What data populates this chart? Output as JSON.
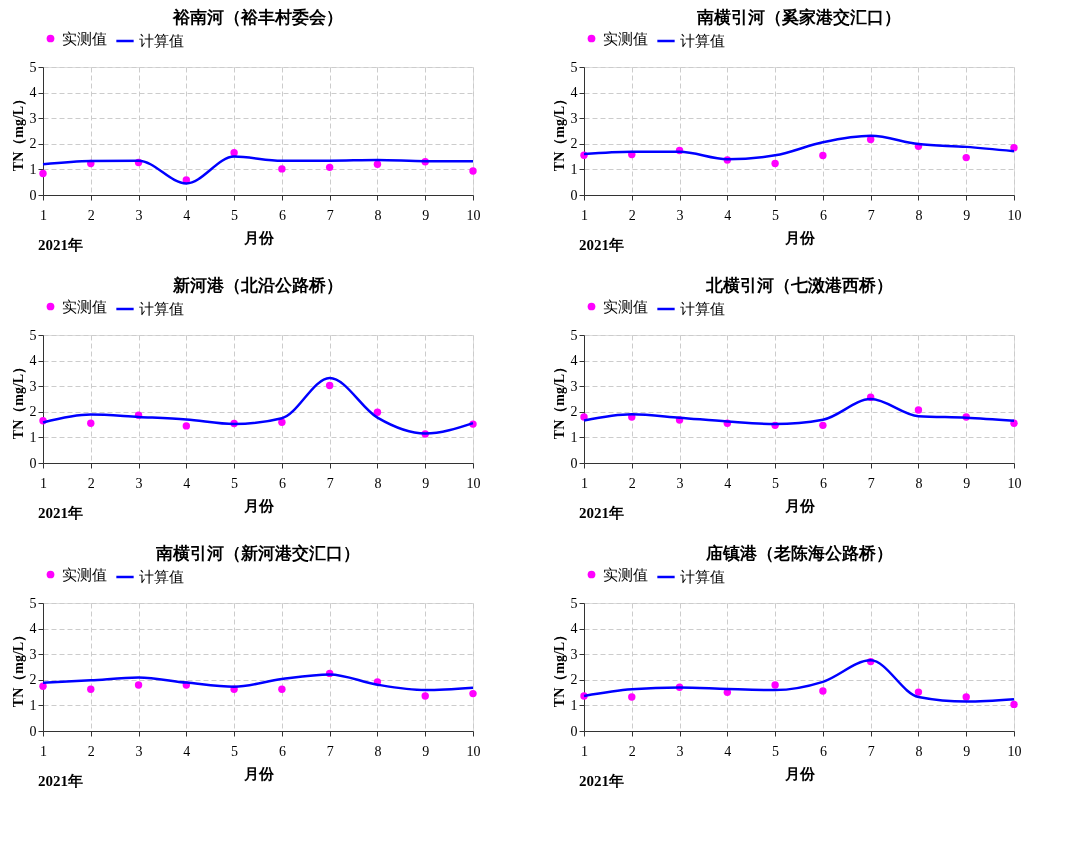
{
  "chart_data": [
    {
      "type": "line",
      "title": "裕南河（裕丰村委会）",
      "xlabel": "月份",
      "ylabel": "TN（mg/L）",
      "annotations": [
        "2021年"
      ],
      "x": [
        1,
        2,
        3,
        4,
        5,
        6,
        7,
        8,
        9,
        10
      ],
      "xlim": [
        1,
        10
      ],
      "xticks": [
        1,
        2,
        3,
        4,
        5,
        6,
        7,
        8,
        9,
        10
      ],
      "ylim": [
        0,
        5
      ],
      "yticks": [
        0,
        1,
        2,
        3,
        4,
        5
      ],
      "grid": true,
      "legend": "top",
      "series": [
        {
          "name": "实测值",
          "type": "scatter",
          "marker": "circle",
          "color": "#ff00ff",
          "values": [
            0.84,
            1.23,
            1.27,
            0.59,
            1.65,
            1.02,
            1.08,
            1.2,
            1.3,
            0.94
          ]
        },
        {
          "name": "计算值",
          "color": "#0000ff",
          "values": [
            1.2,
            1.33,
            1.34,
            0.45,
            1.5,
            1.34,
            1.34,
            1.37,
            1.32,
            1.32
          ]
        }
      ]
    },
    {
      "type": "line",
      "title": "南横引河（奚家港交汇口）",
      "xlabel": "月份",
      "ylabel": "TN（mg/L）",
      "annotations": [
        "2021年"
      ],
      "x": [
        1,
        2,
        3,
        4,
        5,
        6,
        7,
        8,
        9,
        10
      ],
      "xlim": [
        1,
        10
      ],
      "xticks": [
        1,
        2,
        3,
        4,
        5,
        6,
        7,
        8,
        9,
        10
      ],
      "ylim": [
        0,
        5
      ],
      "yticks": [
        0,
        1,
        2,
        3,
        4,
        5
      ],
      "grid": true,
      "legend": "top",
      "series": [
        {
          "name": "实测值",
          "type": "scatter",
          "marker": "circle",
          "color": "#ff00ff",
          "values": [
            1.55,
            1.58,
            1.74,
            1.37,
            1.23,
            1.54,
            2.17,
            1.9,
            1.46,
            1.85
          ]
        },
        {
          "name": "计算值",
          "color": "#0000ff",
          "values": [
            1.6,
            1.69,
            1.69,
            1.4,
            1.55,
            2.06,
            2.31,
            1.99,
            1.88,
            1.71
          ]
        }
      ]
    },
    {
      "type": "line",
      "title": "新河港（北沿公路桥）",
      "xlabel": "月份",
      "ylabel": "TN（mg/L）",
      "annotations": [
        "2021年"
      ],
      "x": [
        1,
        2,
        3,
        4,
        5,
        6,
        7,
        8,
        9,
        10
      ],
      "xlim": [
        1,
        10
      ],
      "xticks": [
        1,
        2,
        3,
        4,
        5,
        6,
        7,
        8,
        9,
        10
      ],
      "ylim": [
        0,
        5
      ],
      "yticks": [
        0,
        1,
        2,
        3,
        4,
        5
      ],
      "grid": true,
      "legend": "top",
      "series": [
        {
          "name": "实测值",
          "type": "scatter",
          "marker": "circle",
          "color": "#ff00ff",
          "values": [
            1.65,
            1.55,
            1.87,
            1.45,
            1.54,
            1.59,
            3.03,
            1.98,
            1.13,
            1.52
          ]
        },
        {
          "name": "计算值",
          "color": "#0000ff",
          "values": [
            1.58,
            1.89,
            1.8,
            1.7,
            1.52,
            1.75,
            3.32,
            1.77,
            1.15,
            1.56
          ]
        }
      ]
    },
    {
      "type": "line",
      "title": "北横引河（七滧港西桥）",
      "xlabel": "月份",
      "ylabel": "TN（mg/L）",
      "annotations": [
        "2021年"
      ],
      "x": [
        1,
        2,
        3,
        4,
        5,
        6,
        7,
        8,
        9,
        10
      ],
      "xlim": [
        1,
        10
      ],
      "xticks": [
        1,
        2,
        3,
        4,
        5,
        6,
        7,
        8,
        9,
        10
      ],
      "ylim": [
        0,
        5
      ],
      "yticks": [
        0,
        1,
        2,
        3,
        4,
        5
      ],
      "grid": true,
      "legend": "top",
      "series": [
        {
          "name": "实测值",
          "type": "scatter",
          "marker": "circle",
          "color": "#ff00ff",
          "values": [
            1.8,
            1.8,
            1.68,
            1.55,
            1.47,
            1.47,
            2.57,
            2.07,
            1.8,
            1.55
          ]
        },
        {
          "name": "计算值",
          "color": "#0000ff",
          "values": [
            1.66,
            1.9,
            1.77,
            1.62,
            1.52,
            1.69,
            2.5,
            1.83,
            1.77,
            1.65
          ]
        }
      ]
    },
    {
      "type": "line",
      "title": "南横引河（新河港交汇口）",
      "xlabel": "月份",
      "ylabel": "TN（mg/L）",
      "annotations": [
        "2021年"
      ],
      "x": [
        1,
        2,
        3,
        4,
        5,
        6,
        7,
        8,
        9,
        10
      ],
      "xlim": [
        1,
        10
      ],
      "xticks": [
        1,
        2,
        3,
        4,
        5,
        6,
        7,
        8,
        9,
        10
      ],
      "ylim": [
        0,
        5
      ],
      "yticks": [
        0,
        1,
        2,
        3,
        4,
        5
      ],
      "grid": true,
      "legend": "top",
      "series": [
        {
          "name": "实测值",
          "type": "scatter",
          "marker": "circle",
          "color": "#ff00ff",
          "values": [
            1.75,
            1.63,
            1.8,
            1.8,
            1.63,
            1.63,
            2.25,
            1.92,
            1.37,
            1.46
          ]
        },
        {
          "name": "计算值",
          "color": "#0000ff",
          "values": [
            1.88,
            1.98,
            2.09,
            1.89,
            1.73,
            2.03,
            2.21,
            1.81,
            1.6,
            1.69
          ]
        }
      ]
    },
    {
      "type": "line",
      "title": "庙镇港（老陈海公路桥）",
      "xlabel": "月份",
      "ylabel": "TN（mg/L）",
      "annotations": [
        "2021年"
      ],
      "x": [
        1,
        2,
        3,
        4,
        5,
        6,
        7,
        8,
        9,
        10
      ],
      "xlim": [
        1,
        10
      ],
      "xticks": [
        1,
        2,
        3,
        4,
        5,
        6,
        7,
        8,
        9,
        10
      ],
      "ylim": [
        0,
        5
      ],
      "yticks": [
        0,
        1,
        2,
        3,
        4,
        5
      ],
      "grid": true,
      "legend": "top",
      "series": [
        {
          "name": "实测值",
          "type": "scatter",
          "marker": "circle",
          "color": "#ff00ff",
          "values": [
            1.37,
            1.33,
            1.71,
            1.51,
            1.8,
            1.56,
            2.71,
            1.52,
            1.33,
            1.04
          ]
        },
        {
          "name": "计算值",
          "color": "#0000ff",
          "values": [
            1.37,
            1.63,
            1.7,
            1.64,
            1.6,
            1.92,
            2.76,
            1.33,
            1.15,
            1.24
          ]
        }
      ]
    }
  ]
}
